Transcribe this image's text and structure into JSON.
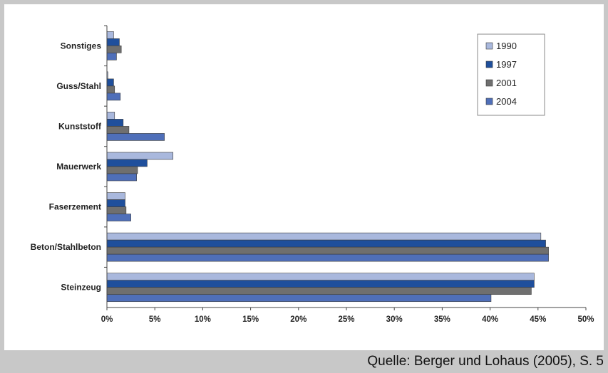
{
  "source": "Quelle: Berger und Lohaus (2005), S. 5",
  "chart_data": {
    "type": "bar",
    "orientation": "horizontal",
    "categories": [
      "Sonstiges",
      "Guss/Stahl",
      "Kunststoff",
      "Mauerwerk",
      "Faserzement",
      "Beton/Stahlbeton",
      "Steinzeug"
    ],
    "series": [
      {
        "name": "1990",
        "color": "#a9b8dd",
        "values": [
          0.7,
          0.1,
          0.8,
          6.9,
          1.9,
          45.3,
          44.6
        ]
      },
      {
        "name": "1997",
        "color": "#1f4f9c",
        "values": [
          1.3,
          0.7,
          1.7,
          4.2,
          1.9,
          45.8,
          44.6
        ]
      },
      {
        "name": "2001",
        "color": "#6f6f6f",
        "values": [
          1.5,
          0.8,
          2.3,
          3.2,
          2.0,
          46.1,
          44.3
        ]
      },
      {
        "name": "2004",
        "color": "#4f6fb9",
        "values": [
          1.0,
          1.4,
          6.0,
          3.1,
          2.5,
          46.1,
          40.1
        ]
      }
    ],
    "xlim": [
      0,
      50
    ],
    "xticks": [
      "0%",
      "5%",
      "10%",
      "15%",
      "20%",
      "25%",
      "30%",
      "35%",
      "40%",
      "45%",
      "50%"
    ],
    "xlabel": "",
    "ylabel": "",
    "title": "",
    "grid": false,
    "legend_position": "top-right"
  }
}
